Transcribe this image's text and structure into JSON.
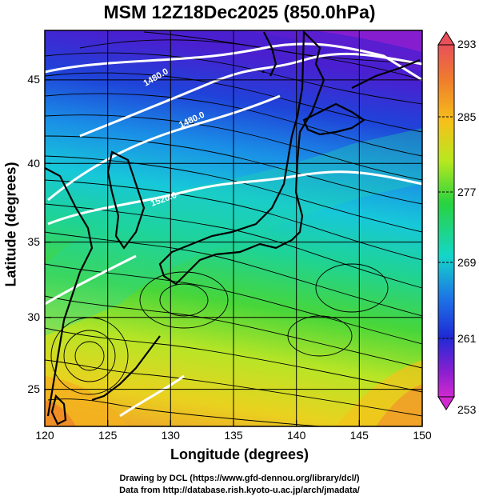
{
  "title": "MSM 12Z18Dec2025 (850.0hPa)",
  "x_axis": {
    "label": "Longitude (degrees)",
    "min": 120,
    "max": 150,
    "ticks": [
      "120",
      "125",
      "130",
      "135",
      "140",
      "145",
      "150"
    ]
  },
  "y_axis": {
    "label": "Latitude  (degrees)",
    "min": 22.4,
    "max": 47.6,
    "ticks": [
      "25",
      "30",
      "35",
      "40",
      "45"
    ]
  },
  "colorbar": {
    "ticks": [
      "293",
      "285",
      "277",
      "269",
      "261",
      "253"
    ],
    "colors": [
      "#e8505a",
      "#f07d2c",
      "#f6c11a",
      "#b7e81f",
      "#28d33f",
      "#14d6c9",
      "#1d74e6",
      "#1f2ad6",
      "#8b1fd0",
      "#d22ad0"
    ]
  },
  "contour_labels": [
    "1480.0",
    "1480.0",
    "1520.0"
  ],
  "credits": [
    "Drawing by DCL (https://www.gfd-dennou.org/library/dcl/)",
    "Data from http://database.rish.kyoto-u.ac.jp/arch/jmadata/"
  ]
}
